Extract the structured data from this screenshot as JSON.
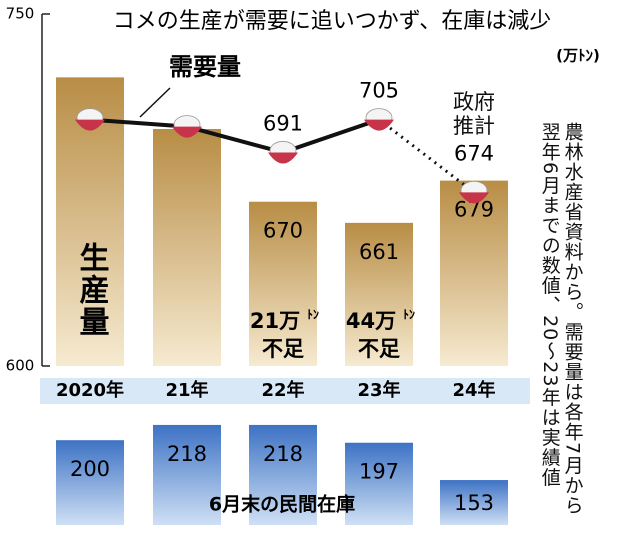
{
  "chart_data": [
    {
      "type": "bar_line",
      "title": "コメの生産が需要に追いつかず、在庫は減少",
      "unit": "(万ﾄﾝ)",
      "categories": [
        "2020年",
        "21年",
        "22年",
        "23年",
        "24年"
      ],
      "ylim": [
        600,
        750
      ],
      "yticks": [
        600,
        750
      ],
      "series": [
        {
          "name": "生産量",
          "color": "#c49a55",
          "values": [
            723,
            701,
            670,
            661,
            679
          ],
          "value_labels": [
            null,
            null,
            "670",
            "661",
            "679"
          ]
        },
        {
          "name": "需要量",
          "color": "#111111",
          "values": [
            705,
            702,
            691,
            705,
            674
          ],
          "value_labels": [
            null,
            null,
            "691",
            "705",
            "674"
          ],
          "estimated": [
            false,
            false,
            false,
            false,
            true
          ],
          "estimate_note": "政府推計"
        }
      ],
      "shortages": [
        null,
        null,
        {
          "amount": "21万",
          "unit": "ﾄﾝ",
          "word": "不足"
        },
        {
          "amount": "44万",
          "unit": "ﾄﾝ",
          "word": "不足"
        },
        null
      ],
      "note": "農林水産省資料から。需要量は各年7月から翌年6月までの数値、20～23年は実績値"
    },
    {
      "type": "bar",
      "label": "6月末の民間在庫",
      "color": "#3d72c4",
      "values": [
        200,
        218,
        218,
        197,
        153
      ],
      "ylim": [
        100,
        225
      ]
    }
  ]
}
